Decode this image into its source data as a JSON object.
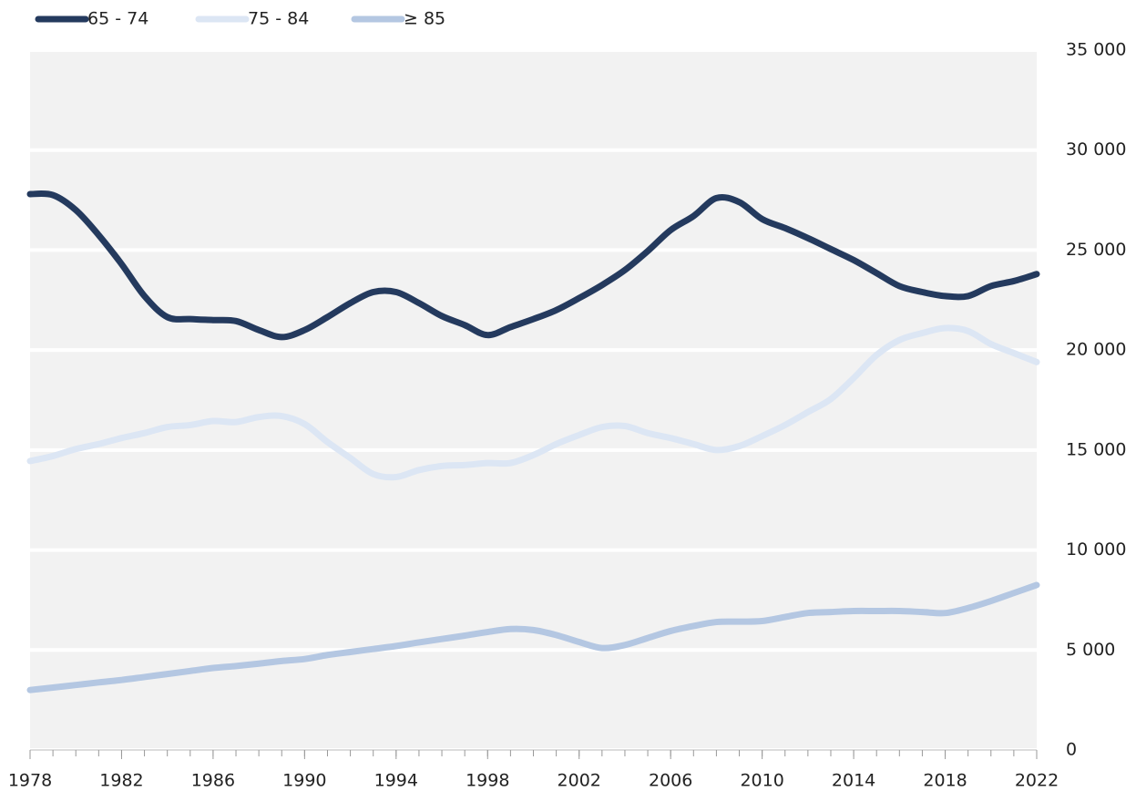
{
  "chart_data": {
    "type": "line",
    "x": [
      1978,
      1979,
      1980,
      1981,
      1982,
      1983,
      1984,
      1985,
      1986,
      1987,
      1988,
      1989,
      1990,
      1991,
      1992,
      1993,
      1994,
      1995,
      1996,
      1997,
      1998,
      1999,
      2000,
      2001,
      2002,
      2003,
      2004,
      2005,
      2006,
      2007,
      2008,
      2009,
      2010,
      2011,
      2012,
      2013,
      2014,
      2015,
      2016,
      2017,
      2018,
      2019,
      2020,
      2021,
      2022
    ],
    "series": [
      {
        "name": "65 - 74",
        "color": "#243a5e",
        "values": [
          27800,
          27750,
          27000,
          25750,
          24300,
          22700,
          21650,
          21550,
          21500,
          21450,
          21000,
          20650,
          21000,
          21650,
          22350,
          22900,
          22900,
          22350,
          21700,
          21250,
          20750,
          21150,
          21550,
          22000,
          22600,
          23250,
          24000,
          24950,
          26000,
          26700,
          27600,
          27400,
          26550,
          26100,
          25600,
          25050,
          24500,
          23850,
          23200,
          22900,
          22700,
          22700,
          23200,
          23450,
          23800
        ]
      },
      {
        "name": "75 - 84",
        "color": "#dce6f4",
        "values": [
          14450,
          14700,
          15050,
          15300,
          15600,
          15850,
          16150,
          16250,
          16450,
          16400,
          16650,
          16700,
          16300,
          15400,
          14600,
          13800,
          13650,
          14000,
          14200,
          14250,
          14350,
          14350,
          14750,
          15300,
          15750,
          16150,
          16200,
          15850,
          15600,
          15300,
          15000,
          15200,
          15700,
          16250,
          16900,
          17550,
          18600,
          19750,
          20500,
          20850,
          21100,
          20950,
          20300,
          19850,
          19400
        ]
      },
      {
        "name": "≥ 85",
        "color": "#b4c7e2",
        "values": [
          3000,
          3120,
          3250,
          3380,
          3500,
          3650,
          3800,
          3950,
          4100,
          4200,
          4320,
          4450,
          4550,
          4750,
          4900,
          5050,
          5200,
          5380,
          5550,
          5720,
          5900,
          6050,
          6000,
          5750,
          5400,
          5100,
          5250,
          5600,
          5950,
          6200,
          6400,
          6420,
          6450,
          6650,
          6850,
          6900,
          6950,
          6950,
          6950,
          6900,
          6850,
          7100,
          7450,
          7850,
          8250
        ]
      }
    ],
    "xlim": [
      1978,
      2022
    ],
    "xticks": [
      1978,
      1982,
      1986,
      1990,
      1994,
      1998,
      2002,
      2006,
      2010,
      2014,
      2018,
      2022
    ],
    "ylim": [
      0,
      35000
    ],
    "yticks": [
      0,
      {
        "value": 5000,
        "label": "5 000"
      },
      {
        "value": 10000,
        "label": "10 000"
      },
      {
        "value": 15000,
        "label": "15 000"
      },
      {
        "value": 20000,
        "label": "20 000"
      },
      {
        "value": 25000,
        "label": "25 000"
      },
      {
        "value": 30000,
        "label": "30 000"
      },
      {
        "value": 35000,
        "label": "35 000"
      }
    ],
    "grid": true
  }
}
